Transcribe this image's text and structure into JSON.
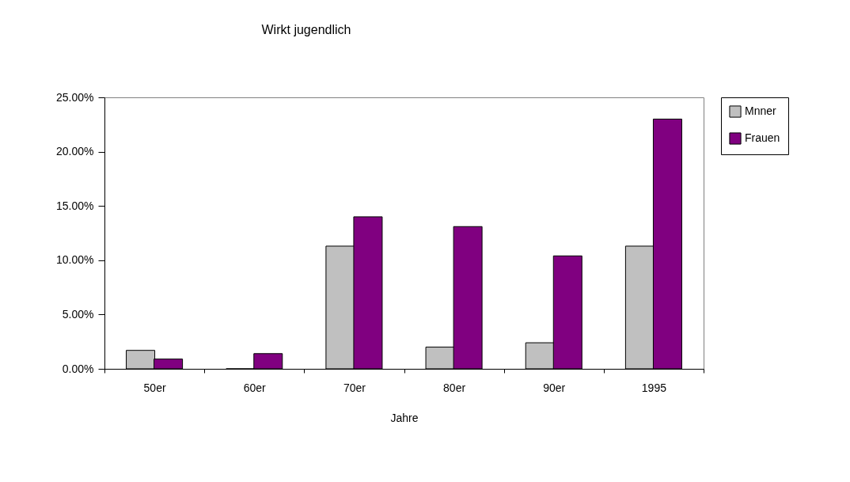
{
  "chart_data": {
    "type": "bar",
    "title": "Wirkt jugendlich",
    "xlabel": "Jahre",
    "categories": [
      "50er",
      "60er",
      "70er",
      "80er",
      "90er",
      "1995"
    ],
    "series": [
      {
        "name": "Mnner",
        "color": "#c0c0c0",
        "values": [
          1.7,
          0,
          11.3,
          2.0,
          2.4,
          11.3
        ]
      },
      {
        "name": "Frauen",
        "color": "#800080",
        "values": [
          0.9,
          1.4,
          14.0,
          13.1,
          10.4,
          23.0
        ]
      }
    ],
    "ylim": [
      0,
      25
    ],
    "yticks": [
      {
        "value": 0,
        "label": "0.00%"
      },
      {
        "value": 5,
        "label": "5.00%"
      },
      {
        "value": 10,
        "label": "10.00%"
      },
      {
        "value": 15,
        "label": "15.00%"
      },
      {
        "value": 20,
        "label": "20.00%"
      },
      {
        "value": 25,
        "label": "25.00%"
      }
    ],
    "grid": false,
    "legend": "right"
  }
}
